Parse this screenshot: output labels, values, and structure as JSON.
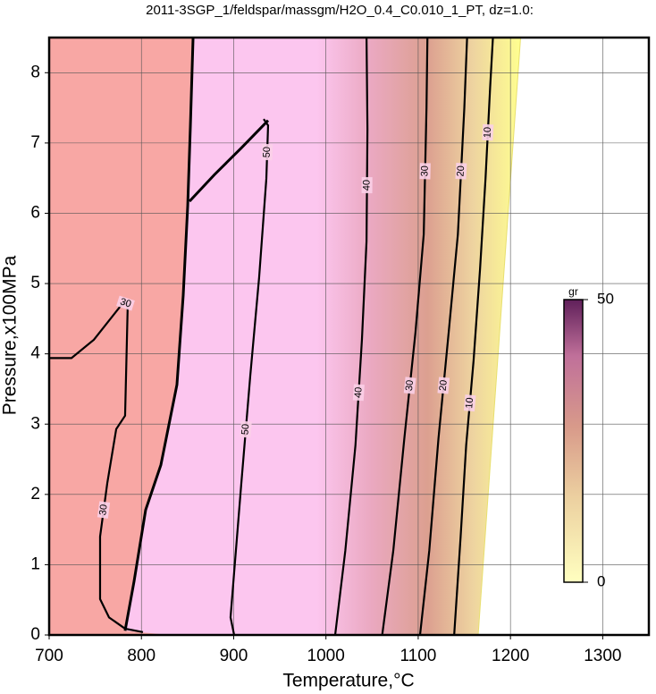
{
  "chart_data": {
    "type": "contour",
    "title": "2011-3SGP_1/feldspar/massgm/H2O_0.4_C0.010_1_PT, dz=1.0:",
    "x_label": "Temperature,°C",
    "y_label": "Pressure,x100MPa",
    "xlim": [
      700,
      1350
    ],
    "ylim": [
      0,
      8.5
    ],
    "xticks": [
      700,
      800,
      900,
      1000,
      1100,
      1200,
      1300
    ],
    "yticks": [
      0,
      1,
      2,
      3,
      4,
      5,
      6,
      7,
      8
    ],
    "grid": true,
    "contours": [
      {
        "level": 10,
        "x": [
          1139,
          1146,
          1152,
          1160,
          1167,
          1173,
          1178,
          1181
        ],
        "y": [
          0,
          1.4,
          2.7,
          3.9,
          5.2,
          6.5,
          7.8,
          8.5
        ]
      },
      {
        "level": 20,
        "x": [
          1102,
          1112,
          1122,
          1133,
          1143,
          1150,
          1153
        ],
        "y": [
          0,
          1.2,
          2.8,
          4.3,
          5.7,
          7.5,
          8.5
        ]
      },
      {
        "level": 30,
        "x": [
          1061,
          1073,
          1085,
          1097,
          1106,
          1109,
          1110
        ],
        "y": [
          0,
          1.2,
          2.8,
          4.3,
          5.7,
          7.5,
          8.5
        ]
      },
      {
        "level": 40,
        "x": [
          1010,
          1021,
          1032,
          1039,
          1044,
          1045,
          1044
        ],
        "y": [
          0,
          1.2,
          2.7,
          4.2,
          5.6,
          7.2,
          8.5
        ]
      },
      {
        "level": 50,
        "x": [
          900.5,
          896.6,
          900.5,
          908.3,
          918,
          927.6,
          935.4,
          937.3,
          932.5
        ],
        "y": [
          0,
          0.25,
          0.89,
          2.16,
          3.69,
          5.09,
          6.49,
          7.25,
          7.34
        ]
      },
      {
        "level": 30,
        "x": [
          801.7,
          782.3,
          764.9,
          755.2,
          755.2,
          763,
          772.7,
          782.3,
          785.2,
          780.4,
          748.4,
          724.2,
          700
        ],
        "y": [
          0.04,
          0.09,
          0.25,
          0.51,
          1.4,
          2.16,
          2.93,
          3.12,
          4.71,
          4.73,
          4.2,
          3.94,
          3.94
        ]
      }
    ],
    "boundaries": [
      {
        "x": [
          782.3,
          792,
          804.6,
          821.1,
          838.5,
          845.3,
          850.2,
          853.1,
          856
        ],
        "y": [
          0.06,
          0.76,
          1.78,
          2.42,
          3.56,
          4.83,
          6.11,
          7.25,
          8.5
        ]
      },
      {
        "x": [
          852.1,
          879.2,
          908.3,
          937.3
        ],
        "y": [
          6.17,
          6.55,
          6.93,
          7.32
        ]
      }
    ],
    "edge": {
      "x": [
        1165,
        1211
      ],
      "y": [
        0,
        8.5
      ]
    },
    "colorbar": {
      "label": "gr",
      "lim": [
        0,
        50
      ],
      "ticks": [
        0,
        50
      ]
    }
  }
}
